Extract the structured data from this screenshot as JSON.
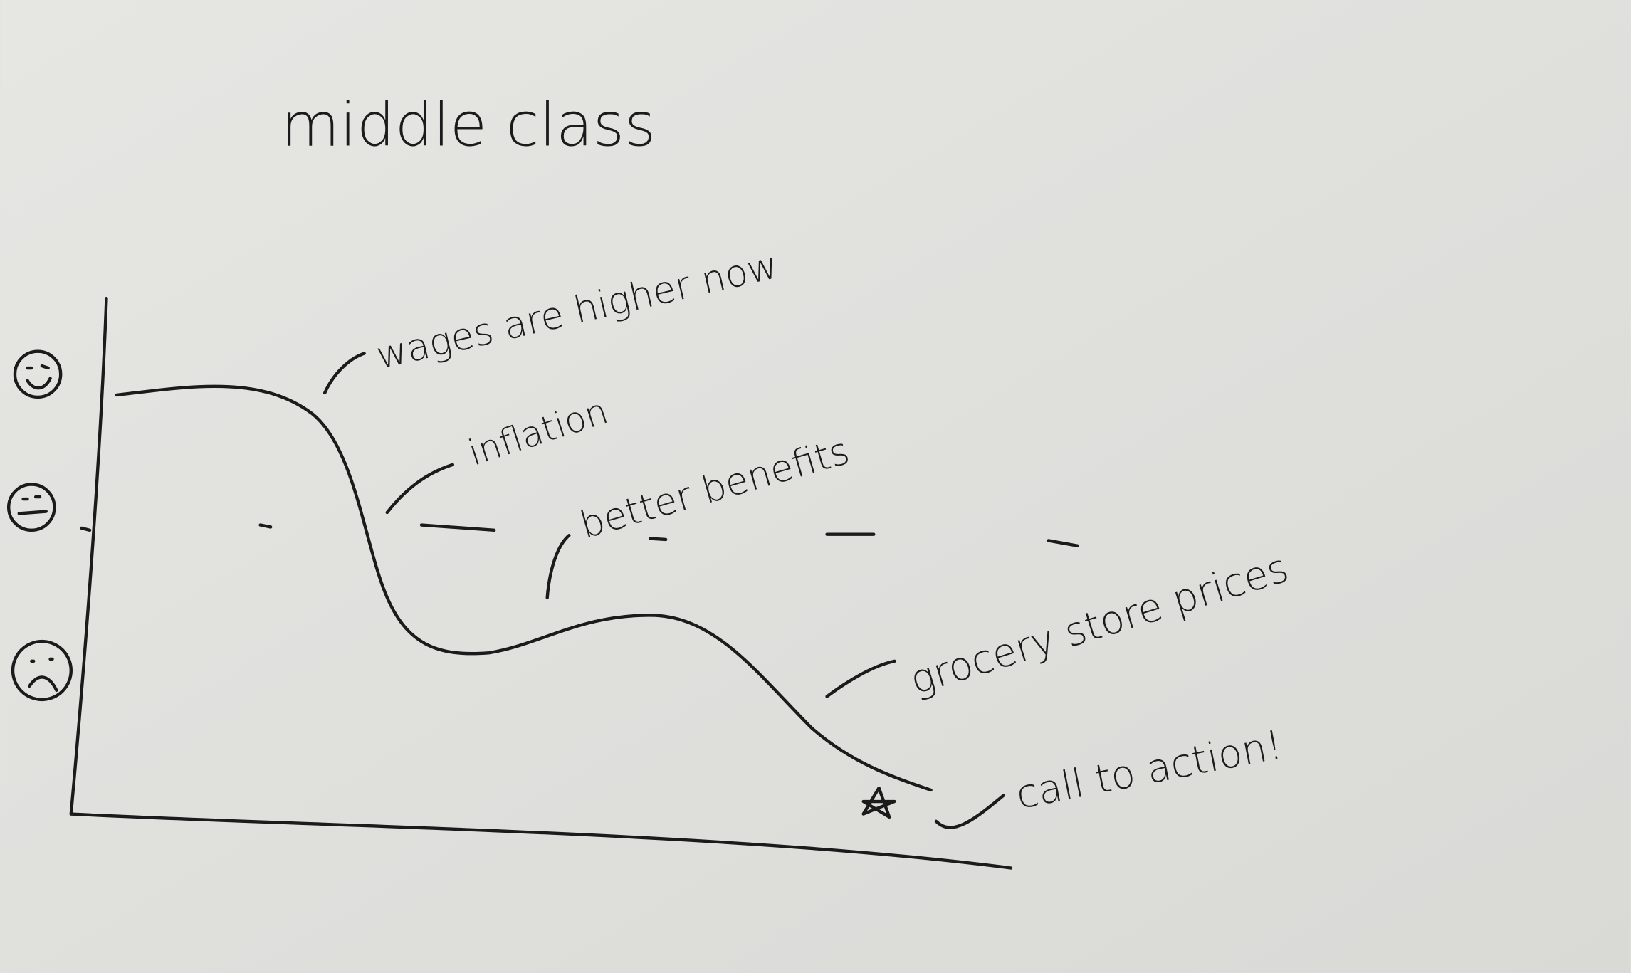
{
  "title": "middle class",
  "annotations": [
    "wages are higher now",
    "inflation",
    "better benefits",
    "grocery store prices",
    "call to action!"
  ]
}
